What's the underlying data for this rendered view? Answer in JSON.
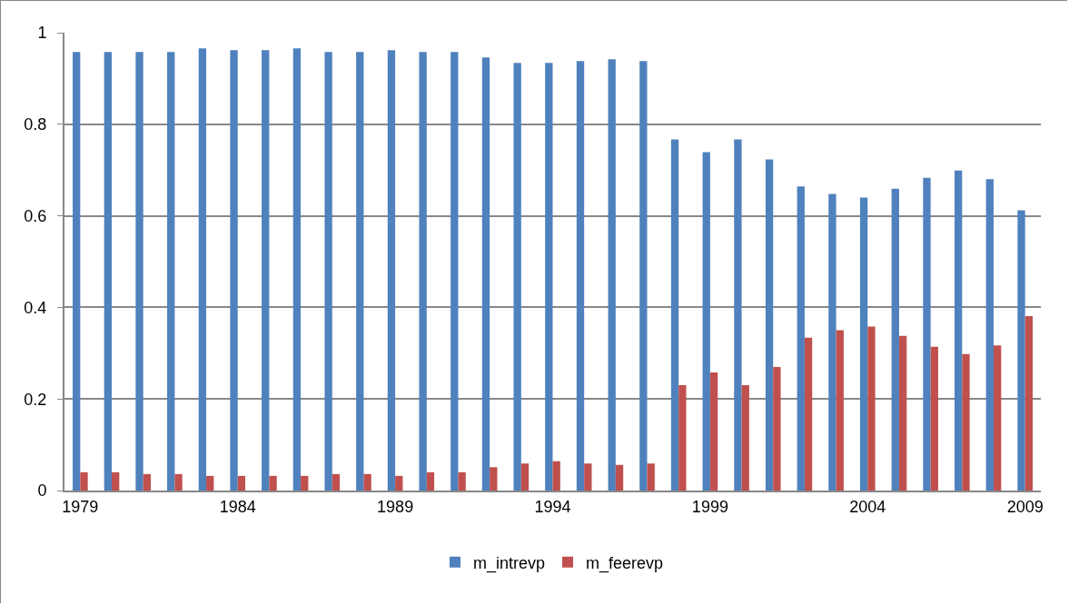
{
  "chart_data": {
    "type": "bar",
    "categories": [
      "1979",
      null,
      null,
      null,
      null,
      "1984",
      null,
      null,
      null,
      null,
      "1989",
      null,
      null,
      null,
      null,
      "1994",
      null,
      null,
      null,
      null,
      "1999",
      null,
      null,
      null,
      null,
      "2004",
      null,
      null,
      null,
      null,
      "2009"
    ],
    "series": [
      {
        "name": "m_intrevp",
        "color": "#4f81bd",
        "values": [
          0.958,
          0.958,
          0.958,
          0.958,
          0.966,
          0.962,
          0.962,
          0.966,
          0.958,
          0.958,
          0.962,
          0.958,
          0.958,
          0.946,
          0.934,
          0.934,
          0.938,
          0.942,
          0.938,
          0.767,
          0.739,
          0.767,
          0.723,
          0.664,
          0.648,
          0.64,
          0.659,
          0.683,
          0.699,
          0.68,
          0.612
        ]
      },
      {
        "name": "m_feerevp",
        "color": "#c0504d",
        "values": [
          0.04,
          0.04,
          0.036,
          0.036,
          0.032,
          0.032,
          0.032,
          0.032,
          0.036,
          0.036,
          0.032,
          0.04,
          0.04,
          0.051,
          0.059,
          0.064,
          0.059,
          0.056,
          0.059,
          0.23,
          0.258,
          0.23,
          0.27,
          0.334,
          0.35,
          0.358,
          0.338,
          0.314,
          0.298,
          0.317,
          0.381
        ]
      }
    ],
    "ylim": [
      0,
      1
    ],
    "yticks": [
      0,
      0.2,
      0.4,
      0.6,
      0.8,
      1
    ],
    "grid": "y",
    "legend": "bottom"
  }
}
